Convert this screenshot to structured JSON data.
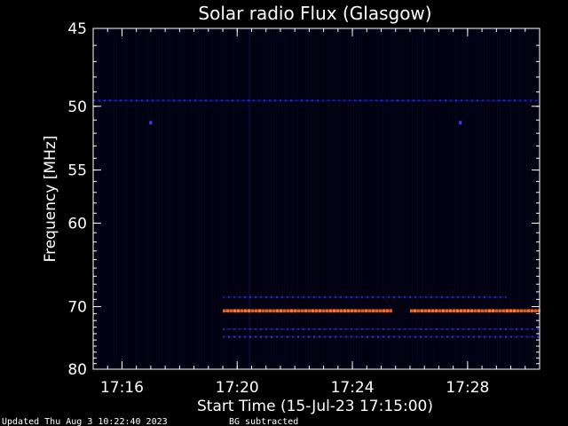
{
  "chart_data": {
    "type": "heatmap",
    "title": "Solar radio Flux (Glasgow)",
    "xlabel": "Start Time (15-Jul-23 17:15:00)",
    "ylabel": "Frequency [MHz]",
    "x_unit": "minutes after 17:15:00",
    "xlim": [
      0,
      15.5
    ],
    "ylim": [
      45,
      80
    ],
    "x_ticks": [
      {
        "value": 1,
        "label": "17:16"
      },
      {
        "value": 5,
        "label": "17:20"
      },
      {
        "value": 9,
        "label": "17:24"
      },
      {
        "value": 13,
        "label": "17:28"
      }
    ],
    "y_ticks": [
      {
        "value": 45,
        "label": "45"
      },
      {
        "value": 50,
        "label": "50"
      },
      {
        "value": 55,
        "label": "55"
      },
      {
        "value": 60,
        "label": "60"
      },
      {
        "value": 70,
        "label": "70"
      },
      {
        "value": 80,
        "label": "80"
      }
    ],
    "background_color": "#000010",
    "grid": false,
    "emission_lines": [
      {
        "freq_mhz": 49.6,
        "start_min": 0,
        "end_min": 15.5,
        "intensity": "medium",
        "color": "#2a2aff"
      },
      {
        "freq_mhz": 68.7,
        "start_min": 4.5,
        "end_min": 14.3,
        "intensity": "low",
        "color": "#3030c8"
      },
      {
        "freq_mhz": 70.6,
        "start_min": 4.5,
        "end_min": 10.3,
        "intensity": "high",
        "color": "#ff5a20"
      },
      {
        "freq_mhz": 70.6,
        "start_min": 11.0,
        "end_min": 15.5,
        "intensity": "high",
        "color": "#ff5a20"
      },
      {
        "freq_mhz": 73.3,
        "start_min": 4.5,
        "end_min": 15.5,
        "intensity": "low",
        "color": "#3030c8"
      },
      {
        "freq_mhz": 74.5,
        "start_min": 4.5,
        "end_min": 15.5,
        "intensity": "low",
        "color": "#3a3ae0"
      }
    ]
  },
  "footer": {
    "updated": "Updated Thu Aug  3 10:22:40 2023",
    "note": "BG subtracted"
  }
}
